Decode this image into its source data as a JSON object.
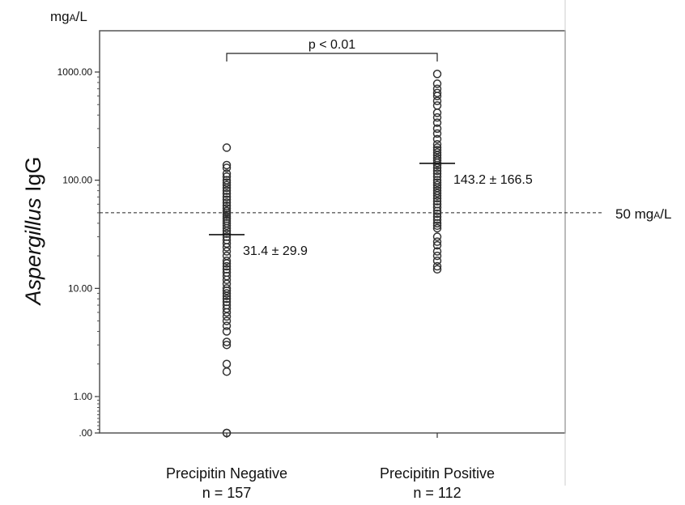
{
  "chart_data": {
    "type": "scatter",
    "title": "",
    "unit_label": {
      "main": "mg",
      "sub": "A",
      "rest": "/L"
    },
    "ylabel_italic": "Aspergillus",
    "ylabel_rest": " IgG",
    "y_scale": "log",
    "ylim": [
      0,
      1500
    ],
    "y_ticks": [
      0,
      1,
      10,
      100,
      1000
    ],
    "y_tick_labels": [
      ".00",
      "1.00",
      "10.00",
      "100.00",
      "1000.00"
    ],
    "categories": [
      "Precipitin Negative",
      "Precipitin Positive"
    ],
    "category_n": [
      "n = 157",
      "n = 112"
    ],
    "grid": false,
    "series": [
      {
        "category": "Precipitin Negative",
        "mean": 31.4,
        "mean_label": "31.4 ± 29.9",
        "values": [
          200,
          138,
          130,
          115,
          108,
          100,
          95,
          90,
          85,
          80,
          75,
          70,
          66,
          62,
          58,
          55,
          52,
          50,
          48,
          46,
          44,
          42,
          40,
          38,
          36,
          34,
          32,
          30,
          28,
          26,
          24,
          22,
          20,
          18,
          17,
          16,
          15,
          14,
          13,
          12,
          11,
          10,
          9.5,
          9,
          8.5,
          8,
          7.5,
          7,
          6.5,
          6,
          5.5,
          5,
          4.5,
          4,
          3.2,
          3,
          2,
          1.7,
          0,
          0
        ]
      },
      {
        "category": "Precipitin Positive",
        "mean": 143.2,
        "mean_label": "143.2 ± 166.5",
        "values": [
          960,
          780,
          700,
          640,
          600,
          540,
          490,
          420,
          380,
          340,
          300,
          270,
          240,
          215,
          200,
          190,
          180,
          170,
          160,
          152,
          145,
          138,
          130,
          122,
          115,
          108,
          100,
          95,
          90,
          85,
          80,
          76,
          72,
          68,
          64,
          60,
          56,
          52,
          49,
          46,
          43,
          40,
          38,
          36,
          30,
          27,
          25,
          22,
          20,
          18,
          16,
          15
        ]
      }
    ],
    "reference_line": {
      "value": 50,
      "label_main": "50 mg",
      "label_sub": "A",
      "label_rest": "/L"
    },
    "significance": {
      "label": "p < 0.01",
      "between": [
        0,
        1
      ]
    }
  }
}
